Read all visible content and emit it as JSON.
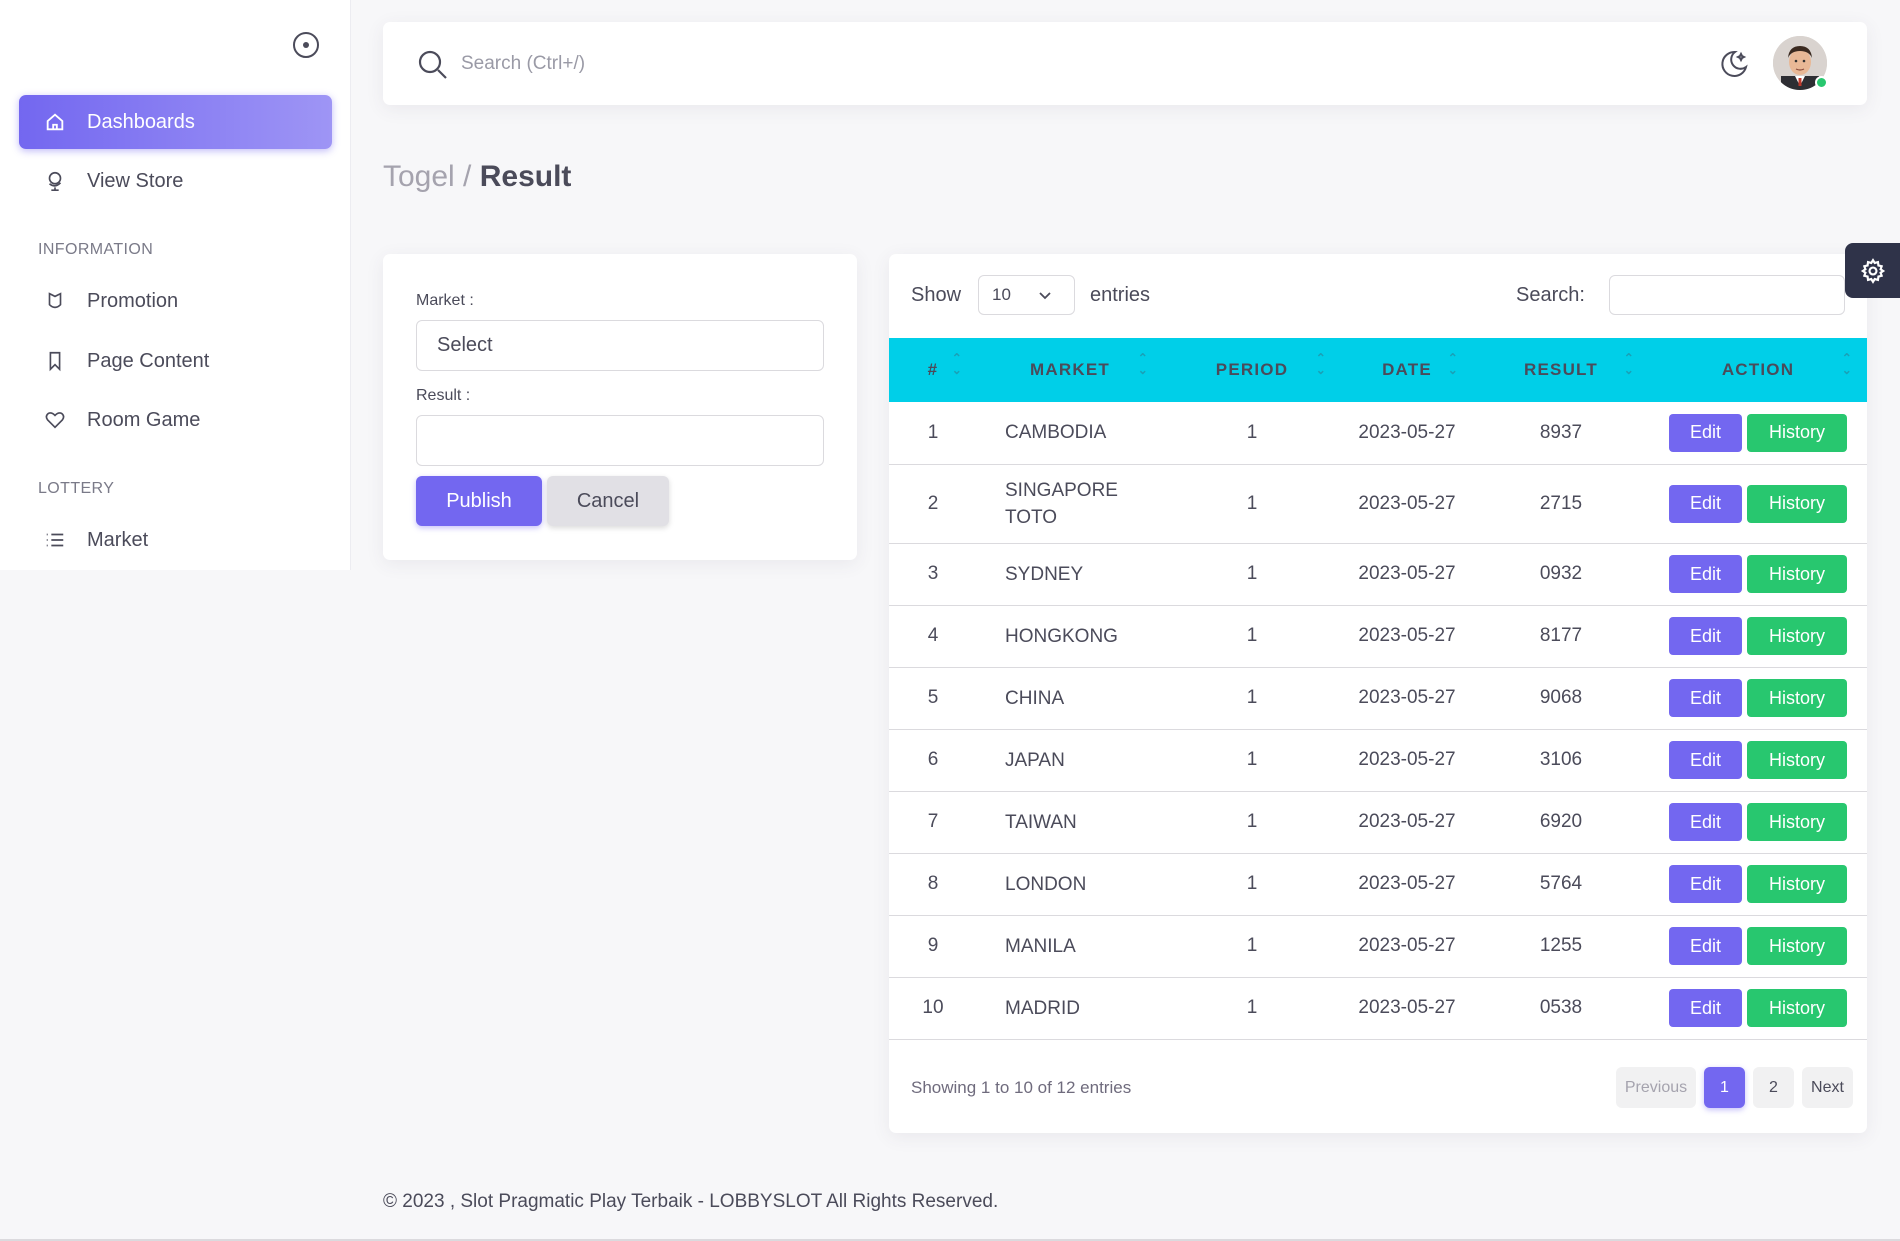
{
  "sidebar": {
    "items": [
      {
        "label": "Dashboards",
        "icon": "home-icon"
      },
      {
        "label": "View Store",
        "icon": "globe-icon"
      },
      {
        "label": "Promotion",
        "icon": "shield-icon"
      },
      {
        "label": "Page Content",
        "icon": "bookmark-icon"
      },
      {
        "label": "Room Game",
        "icon": "heart-icon"
      },
      {
        "label": "Market",
        "icon": "list-icon"
      }
    ],
    "headers": [
      "INFORMATION",
      "LOTTERY"
    ]
  },
  "topbar": {
    "search_placeholder": "Search (Ctrl+/)"
  },
  "breadcrumb": {
    "parent": "Togel /",
    "current": "Result"
  },
  "form": {
    "market_label": "Market :",
    "market_value": "Select",
    "result_label": "Result :",
    "result_value": "",
    "publish_label": "Publish",
    "cancel_label": "Cancel"
  },
  "table": {
    "show_label": "Show",
    "page_size": "10",
    "entries_label": "entries",
    "search_label": "Search:",
    "columns": [
      "#",
      "MARKET",
      "PERIOD",
      "DATE",
      "RESULT",
      "ACTION"
    ],
    "edit_label": "Edit",
    "history_label": "History",
    "rows": [
      {
        "no": "1",
        "market": "CAMBODIA",
        "period": "1",
        "date": "2023-05-27",
        "result": "8937"
      },
      {
        "no": "2",
        "market": "SINGAPORE TOTO",
        "period": "1",
        "date": "2023-05-27",
        "result": "2715"
      },
      {
        "no": "3",
        "market": "SYDNEY",
        "period": "1",
        "date": "2023-05-27",
        "result": "0932"
      },
      {
        "no": "4",
        "market": "HONGKONG",
        "period": "1",
        "date": "2023-05-27",
        "result": "8177"
      },
      {
        "no": "5",
        "market": "CHINA",
        "period": "1",
        "date": "2023-05-27",
        "result": "9068"
      },
      {
        "no": "6",
        "market": "JAPAN",
        "period": "1",
        "date": "2023-05-27",
        "result": "3106"
      },
      {
        "no": "7",
        "market": "TAIWAN",
        "period": "1",
        "date": "2023-05-27",
        "result": "6920"
      },
      {
        "no": "8",
        "market": "LONDON",
        "period": "1",
        "date": "2023-05-27",
        "result": "5764"
      },
      {
        "no": "9",
        "market": "MANILA",
        "period": "1",
        "date": "2023-05-27",
        "result": "1255"
      },
      {
        "no": "10",
        "market": "MADRID",
        "period": "1",
        "date": "2023-05-27",
        "result": "0538"
      }
    ],
    "info": "Showing 1 to 10 of 12 entries",
    "pager": {
      "previous": "Previous",
      "pages": [
        "1",
        "2"
      ],
      "next": "Next"
    }
  },
  "footer": "© 2023 , Slot Pragmatic Play Terbaik - LOBBYSLOT All Rights Reserved.",
  "colors": {
    "primary": "#7367f0",
    "success": "#28c76f",
    "table_header": "#00cfe8",
    "settings_tab": "#2f3349"
  }
}
